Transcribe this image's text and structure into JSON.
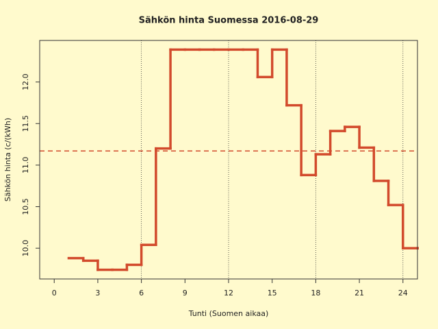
{
  "chart_data": {
    "type": "line",
    "step": true,
    "title": "Sähkön hinta Suomessa 2016-08-29",
    "xlabel": "Tunti (Suomen aikaa)",
    "ylabel": "Sähkön hinta (c/(kWh)",
    "x": [
      1,
      2,
      3,
      4,
      5,
      6,
      7,
      8,
      9,
      10,
      11,
      12,
      13,
      14,
      15,
      16,
      17,
      18,
      19,
      20,
      21,
      22,
      23,
      24,
      25
    ],
    "series": [
      {
        "color": "#d24a2c",
        "values": [
          9.88,
          9.85,
          9.74,
          9.74,
          9.8,
          10.04,
          11.2,
          12.39,
          12.39,
          12.39,
          12.39,
          12.39,
          12.39,
          12.06,
          12.39,
          11.72,
          10.88,
          11.13,
          11.41,
          11.46,
          11.21,
          10.81,
          10.52,
          10.0,
          10.0
        ]
      }
    ],
    "mean_line": {
      "value": 11.17,
      "color": "#d24a2c"
    },
    "vlines": [
      6,
      12,
      18,
      24
    ],
    "xlim": [
      -1,
      25
    ],
    "ylim": [
      9.63,
      12.5
    ],
    "xticks": [
      0,
      3,
      6,
      9,
      12,
      15,
      18,
      21,
      24
    ],
    "yticks": [
      {
        "value": 10,
        "label": "10.0"
      },
      {
        "value": 10.5,
        "label": "10.5"
      },
      {
        "value": 11,
        "label": "11.0"
      },
      {
        "value": 11.5,
        "label": "11.5"
      },
      {
        "value": 12,
        "label": "12.0"
      }
    ]
  }
}
